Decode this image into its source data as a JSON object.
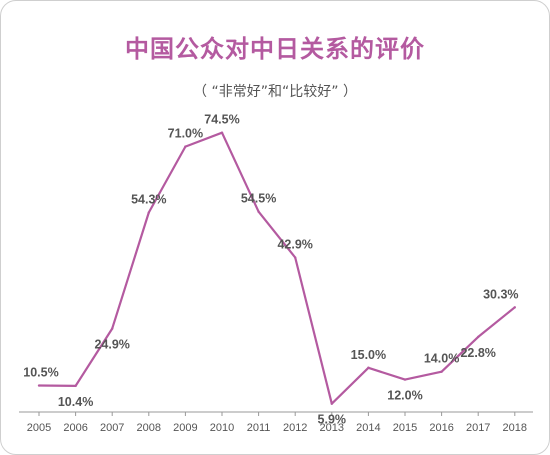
{
  "chart_data": {
    "type": "line",
    "title": "中国公众对中日关系的评价",
    "subtitle": "（ “非常好”和“比较好” ）",
    "x": [
      "2005",
      "2006",
      "2007",
      "2008",
      "2009",
      "2010",
      "2011",
      "2012",
      "2013",
      "2014",
      "2015",
      "2016",
      "2017",
      "2018"
    ],
    "series": [
      {
        "values": [
          10.5,
          10.4,
          24.9,
          54.3,
          71.0,
          74.5,
          54.5,
          42.9,
          5.9,
          15.0,
          12.0,
          14.0,
          22.8,
          30.3
        ],
        "labels": [
          "10.5%",
          "10.4%",
          "24.9%",
          "54.3%",
          "71.0%",
          "74.5%",
          "54.5%",
          "42.9%",
          "5.9%",
          "15.0%",
          "12.0%",
          "14.0%",
          "22.8%",
          "30.3%"
        ],
        "label_pos": [
          "above",
          "below",
          "below",
          "above",
          "above",
          "above",
          "above",
          "above",
          "below",
          "above",
          "below",
          "above",
          "below",
          "above"
        ]
      }
    ],
    "ylim": [
      0,
      80
    ],
    "grid": false,
    "line_color": "#b45aa0",
    "axis_color": "#999999",
    "text_color": "#555555"
  }
}
